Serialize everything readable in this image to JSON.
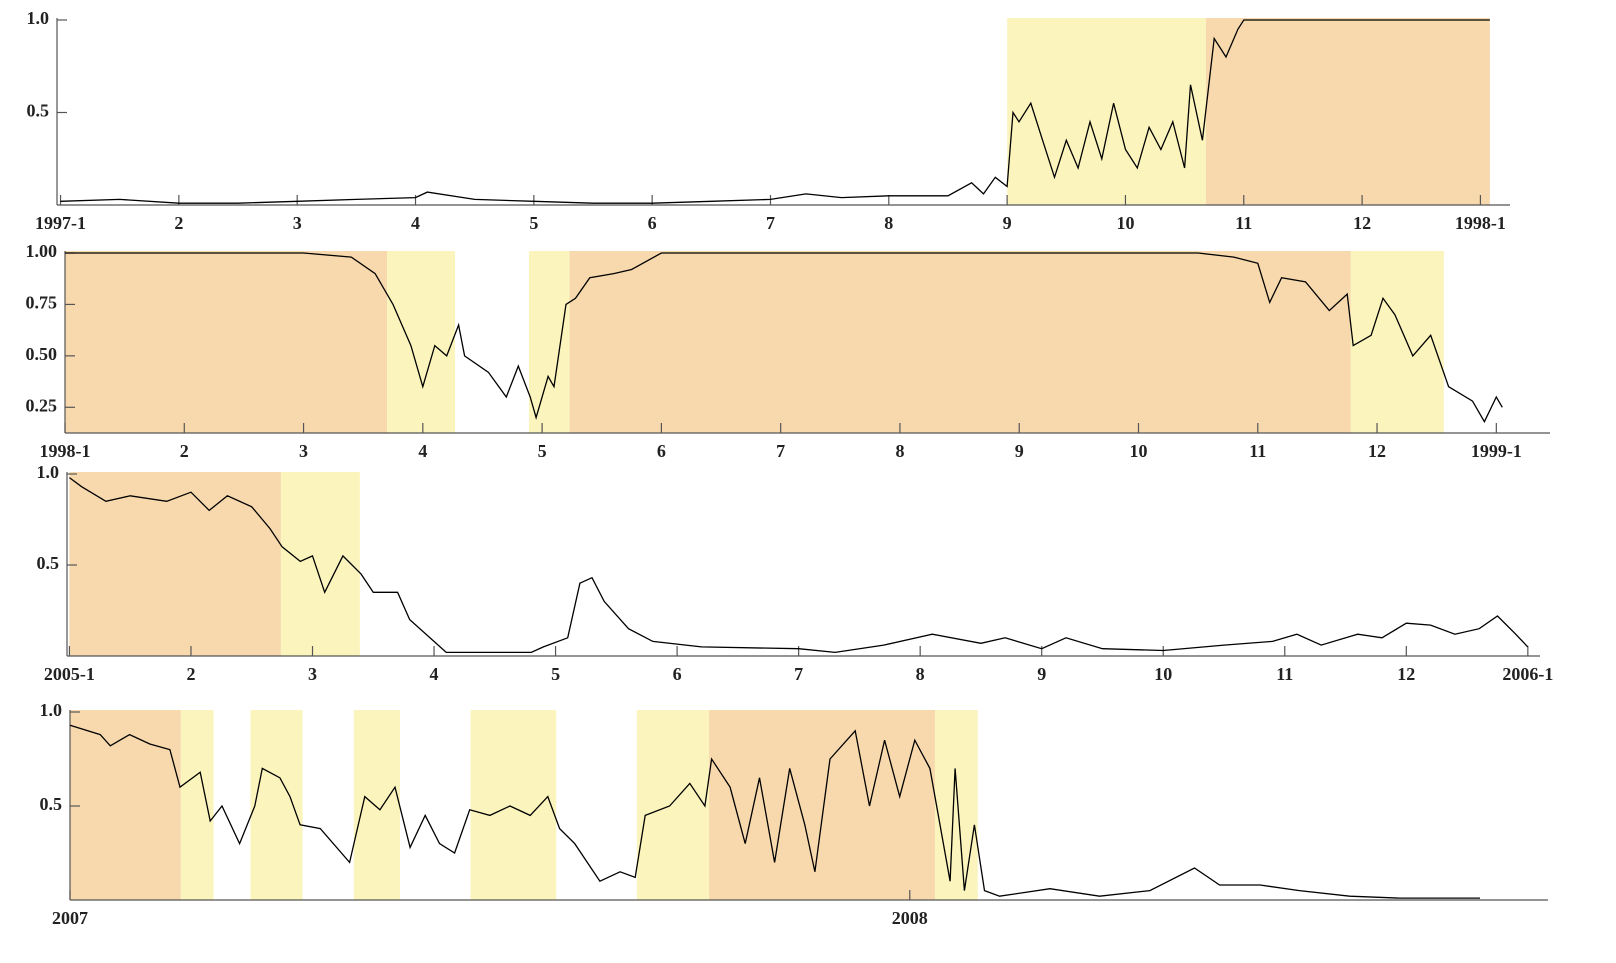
{
  "chart_data": [
    {
      "type": "line",
      "color": "#000000",
      "xlim": [
        0.97,
        13.25
      ],
      "ylim": [
        0,
        1
      ],
      "xticks": [
        {
          "value": 1,
          "label": "1997-1"
        },
        2,
        3,
        4,
        5,
        6,
        7,
        8,
        9,
        10,
        11,
        12,
        {
          "value": 13,
          "label": "1998-1"
        }
      ],
      "yticks": [
        0.5,
        {
          "value": 1,
          "label": "1.0"
        }
      ],
      "regions": [
        {
          "start": 9.0,
          "end": 10.68,
          "color": "#fbf5bd"
        },
        {
          "start": 10.68,
          "end": 13.08,
          "color": "#f8d9ad"
        }
      ],
      "x": [
        1,
        1.5,
        2,
        2.5,
        3,
        3.5,
        4,
        4.1,
        4.5,
        5,
        5.5,
        6,
        6.5,
        7,
        7.3,
        7.6,
        8,
        8.5,
        8.7,
        8.8,
        8.9,
        9.0,
        9.05,
        9.1,
        9.2,
        9.3,
        9.4,
        9.5,
        9.6,
        9.7,
        9.8,
        9.9,
        10.0,
        10.1,
        10.2,
        10.3,
        10.4,
        10.5,
        10.55,
        10.65,
        10.75,
        10.85,
        10.95,
        11.0,
        11.2,
        12,
        13,
        13.08
      ],
      "values": [
        0.02,
        0.03,
        0.01,
        0.01,
        0.02,
        0.03,
        0.04,
        0.07,
        0.03,
        0.02,
        0.01,
        0.01,
        0.02,
        0.03,
        0.06,
        0.04,
        0.05,
        0.05,
        0.12,
        0.06,
        0.15,
        0.1,
        0.5,
        0.45,
        0.55,
        0.35,
        0.15,
        0.35,
        0.2,
        0.45,
        0.25,
        0.55,
        0.3,
        0.2,
        0.42,
        0.3,
        0.45,
        0.2,
        0.65,
        0.35,
        0.9,
        0.8,
        0.95,
        1.0,
        1.0,
        1.0,
        1.0,
        1.0
      ]
    },
    {
      "type": "line",
      "color": "#000000",
      "xlim": [
        1,
        13.45
      ],
      "ylim": [
        0.125,
        1
      ],
      "xticks": [
        {
          "value": 1,
          "label": "1998-1"
        },
        2,
        3,
        4,
        5,
        6,
        7,
        8,
        9,
        10,
        11,
        12,
        {
          "value": 13,
          "label": "1999-1"
        }
      ],
      "yticks": [
        {
          "value": 0.25,
          "label": "0.25"
        },
        {
          "value": 0.5,
          "label": "0.50"
        },
        {
          "value": 0.75,
          "label": "0.75"
        },
        {
          "value": 1,
          "label": "1.00"
        }
      ],
      "regions": [
        {
          "start": 1,
          "end": 3.7,
          "color": "#f8d9ad"
        },
        {
          "start": 3.7,
          "end": 4.27,
          "color": "#fbf5bd"
        },
        {
          "start": 4.89,
          "end": 5.23,
          "color": "#fbf5bd"
        },
        {
          "start": 5.23,
          "end": 11.78,
          "color": "#f8d9ad"
        },
        {
          "start": 11.78,
          "end": 12.56,
          "color": "#fbf5bd"
        }
      ],
      "x": [
        1,
        2,
        3,
        3.4,
        3.6,
        3.75,
        3.9,
        4.0,
        4.1,
        4.2,
        4.3,
        4.35,
        4.55,
        4.7,
        4.8,
        4.9,
        4.95,
        5.05,
        5.1,
        5.2,
        5.28,
        5.4,
        5.6,
        5.75,
        6.0,
        8,
        10.5,
        10.8,
        11.0,
        11.1,
        11.2,
        11.4,
        11.6,
        11.75,
        11.8,
        11.95,
        12.05,
        12.15,
        12.3,
        12.45,
        12.6,
        12.8,
        12.9,
        13.0,
        13.05
      ],
      "values": [
        1.0,
        1.0,
        1.0,
        0.98,
        0.9,
        0.75,
        0.55,
        0.35,
        0.55,
        0.5,
        0.65,
        0.5,
        0.42,
        0.3,
        0.45,
        0.3,
        0.2,
        0.4,
        0.35,
        0.75,
        0.78,
        0.88,
        0.9,
        0.92,
        1.0,
        1.0,
        1.0,
        0.98,
        0.95,
        0.76,
        0.88,
        0.86,
        0.72,
        0.8,
        0.55,
        0.6,
        0.78,
        0.7,
        0.5,
        0.6,
        0.35,
        0.28,
        0.18,
        0.3,
        0.25
      ]
    },
    {
      "type": "line",
      "color": "#000000",
      "xlim": [
        0.98,
        13.1
      ],
      "ylim": [
        0,
        1
      ],
      "xticks": [
        {
          "value": 1,
          "label": "2005-1"
        },
        2,
        3,
        4,
        5,
        6,
        7,
        8,
        9,
        10,
        11,
        12,
        {
          "value": 13,
          "label": "2006-1"
        }
      ],
      "yticks": [
        0.5,
        {
          "value": 1,
          "label": "1.0"
        }
      ],
      "regions": [
        {
          "start": 1,
          "end": 2.74,
          "color": "#f8d9ad"
        },
        {
          "start": 2.74,
          "end": 3.39,
          "color": "#fbf5bd"
        }
      ],
      "x": [
        1,
        1.1,
        1.3,
        1.5,
        1.8,
        2.0,
        2.15,
        2.3,
        2.5,
        2.65,
        2.75,
        2.9,
        3.0,
        3.1,
        3.25,
        3.4,
        3.5,
        3.7,
        3.8,
        4.0,
        4.1,
        4.5,
        4.8,
        4.9,
        5.1,
        5.2,
        5.3,
        5.4,
        5.6,
        5.8,
        6.2,
        7.0,
        7.3,
        7.7,
        8.1,
        8.5,
        8.7,
        9.0,
        9.2,
        9.5,
        10.0,
        10.5,
        10.9,
        11.1,
        11.3,
        11.6,
        11.8,
        12.0,
        12.2,
        12.4,
        12.6,
        12.75,
        12.9,
        13.0
      ],
      "values": [
        0.98,
        0.93,
        0.85,
        0.88,
        0.85,
        0.9,
        0.8,
        0.88,
        0.82,
        0.7,
        0.6,
        0.52,
        0.55,
        0.35,
        0.55,
        0.45,
        0.35,
        0.35,
        0.2,
        0.08,
        0.02,
        0.02,
        0.02,
        0.05,
        0.1,
        0.4,
        0.43,
        0.3,
        0.15,
        0.08,
        0.05,
        0.04,
        0.02,
        0.06,
        0.12,
        0.07,
        0.1,
        0.04,
        0.1,
        0.04,
        0.03,
        0.06,
        0.08,
        0.12,
        0.06,
        0.12,
        0.1,
        0.18,
        0.17,
        0.12,
        0.15,
        0.22,
        0.12,
        0.05
      ]
    },
    {
      "type": "line",
      "color": "#000000",
      "xlim": [
        2007,
        2008.76
      ],
      "ylim": [
        0,
        1
      ],
      "xticks": [
        2007,
        2008
      ],
      "yticks": [
        0.5,
        {
          "value": 1,
          "label": "1.0"
        }
      ],
      "regions": [
        {
          "start": 2007.0,
          "end": 2007.132,
          "color": "#f8d9ad"
        },
        {
          "start": 2007.132,
          "end": 2007.171,
          "color": "#fbf5bd"
        },
        {
          "start": 2007.215,
          "end": 2007.277,
          "color": "#fbf5bd"
        },
        {
          "start": 2007.338,
          "end": 2007.393,
          "color": "#fbf5bd"
        },
        {
          "start": 2007.477,
          "end": 2007.579,
          "color": "#fbf5bd"
        },
        {
          "start": 2007.675,
          "end": 2007.761,
          "color": "#fbf5bd"
        },
        {
          "start": 2007.761,
          "end": 2008.03,
          "color": "#f8d9ad"
        },
        {
          "start": 2008.03,
          "end": 2008.081,
          "color": "#fbf5bd"
        }
      ],
      "x": [
        2007.0,
        2007.036,
        2007.048,
        2007.071,
        2007.095,
        2007.119,
        2007.131,
        2007.155,
        2007.167,
        2007.181,
        2007.202,
        2007.22,
        2007.229,
        2007.25,
        2007.262,
        2007.274,
        2007.298,
        2007.333,
        2007.351,
        2007.369,
        2007.387,
        2007.405,
        2007.423,
        2007.44,
        2007.458,
        2007.476,
        2007.5,
        2007.524,
        2007.548,
        2007.569,
        2007.583,
        2007.601,
        2007.631,
        2007.655,
        2007.673,
        2007.685,
        2007.714,
        2007.738,
        2007.756,
        2007.764,
        2007.786,
        2007.804,
        2007.821,
        2007.839,
        2007.857,
        2007.875,
        2007.887,
        2007.905,
        2007.935,
        2007.952,
        2007.97,
        2007.988,
        2008.006,
        2008.024,
        2008.036,
        2008.048,
        2008.054,
        2008.065,
        2008.077,
        2008.089,
        2008.107,
        2008.167,
        2008.226,
        2008.286,
        2008.339,
        2008.369,
        2008.417,
        2008.464,
        2008.524,
        2008.583,
        2008.679
      ],
      "values": [
        0.93,
        0.88,
        0.82,
        0.88,
        0.83,
        0.8,
        0.6,
        0.68,
        0.42,
        0.5,
        0.3,
        0.5,
        0.7,
        0.65,
        0.55,
        0.4,
        0.38,
        0.2,
        0.55,
        0.48,
        0.6,
        0.28,
        0.45,
        0.3,
        0.25,
        0.48,
        0.45,
        0.5,
        0.45,
        0.55,
        0.38,
        0.3,
        0.1,
        0.15,
        0.12,
        0.45,
        0.5,
        0.62,
        0.5,
        0.75,
        0.6,
        0.3,
        0.65,
        0.2,
        0.7,
        0.4,
        0.15,
        0.75,
        0.9,
        0.5,
        0.85,
        0.55,
        0.85,
        0.7,
        0.4,
        0.1,
        0.7,
        0.05,
        0.4,
        0.05,
        0.02,
        0.06,
        0.02,
        0.05,
        0.17,
        0.08,
        0.08,
        0.05,
        0.02,
        0.01,
        0.01
      ]
    }
  ]
}
